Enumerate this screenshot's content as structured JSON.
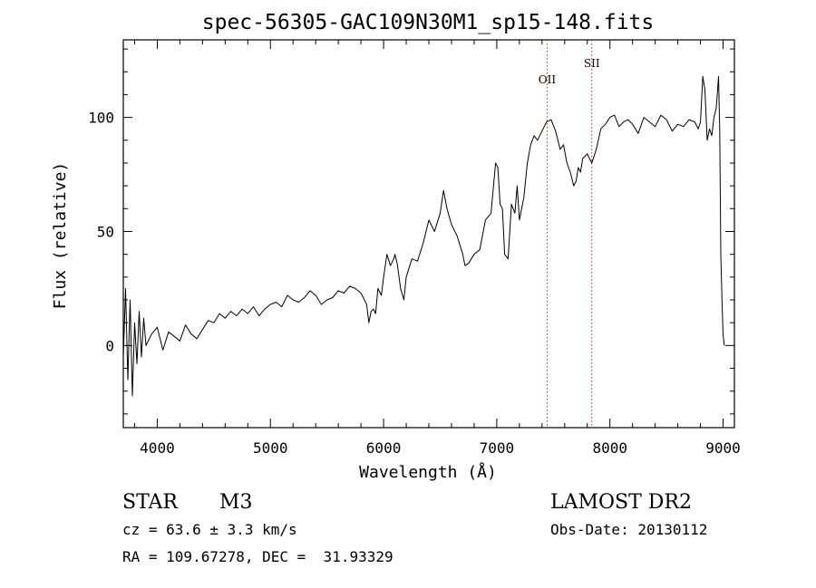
{
  "chart_data": {
    "type": "line",
    "title": "spec-56305-GAC109N30M1_sp15-148.fits",
    "xlabel": "Wavelength (Å)",
    "ylabel": "Flux (relative)",
    "xlim": [
      3700,
      9100
    ],
    "ylim": [
      -36,
      134
    ],
    "x_ticks": [
      4000,
      5000,
      6000,
      7000,
      8000,
      9000
    ],
    "y_ticks": [
      0,
      50,
      100
    ],
    "x_minor_step": 200,
    "y_minor_step": 10,
    "grid": false,
    "line_color": "#000000",
    "marker_color": "#b03030",
    "emission_lines": [
      {
        "label": "OII",
        "wavelength": 7445,
        "label_y": 115
      },
      {
        "label": "SII",
        "wavelength": 7840,
        "label_y": 122
      }
    ],
    "series": [
      {
        "x": [
          3700,
          3720,
          3740,
          3760,
          3780,
          3800,
          3820,
          3840,
          3860,
          3880,
          3900,
          3950,
          4000,
          4050,
          4100,
          4150,
          4200,
          4250,
          4300,
          4350,
          4400,
          4450,
          4500,
          4550,
          4600,
          4650,
          4700,
          4750,
          4800,
          4850,
          4900,
          4950,
          5000,
          5050,
          5100,
          5150,
          5200,
          5250,
          5300,
          5350,
          5400,
          5450,
          5500,
          5550,
          5600,
          5650,
          5700,
          5750,
          5800,
          5850,
          5870,
          5890,
          5910,
          5930,
          5950,
          5980,
          6000,
          6030,
          6060,
          6090,
          6100,
          6120,
          6150,
          6180,
          6200,
          6250,
          6300,
          6350,
          6400,
          6450,
          6500,
          6530,
          6560,
          6600,
          6650,
          6700,
          6720,
          6750,
          6800,
          6850,
          6900,
          6950,
          6990,
          7010,
          7030,
          7050,
          7070,
          7100,
          7130,
          7160,
          7180,
          7200,
          7240,
          7270,
          7300,
          7330,
          7360,
          7400,
          7440,
          7480,
          7520,
          7560,
          7590,
          7620,
          7650,
          7680,
          7700,
          7720,
          7740,
          7760,
          7800,
          7840,
          7880,
          7920,
          7960,
          8000,
          8040,
          8080,
          8120,
          8160,
          8200,
          8250,
          8300,
          8350,
          8400,
          8450,
          8500,
          8550,
          8600,
          8650,
          8700,
          8750,
          8780,
          8800,
          8820,
          8840,
          8860,
          8880,
          8900,
          8920,
          8940,
          8960,
          8970,
          8980,
          8990,
          9000,
          9010
        ],
        "y": [
          -5,
          25,
          -15,
          20,
          -22,
          10,
          -8,
          15,
          -5,
          12,
          0,
          5,
          8,
          -2,
          6,
          4,
          2,
          9,
          5,
          3,
          7,
          11,
          10,
          14,
          12,
          15,
          13,
          16,
          14,
          17,
          13,
          16,
          18,
          19,
          17,
          22,
          20,
          19,
          21,
          24,
          22,
          18,
          20,
          21,
          24,
          23,
          26,
          25,
          23,
          18,
          10,
          15,
          16,
          14,
          25,
          22,
          30,
          40,
          35,
          38,
          40,
          36,
          25,
          20,
          30,
          38,
          37,
          45,
          55,
          50,
          58,
          68,
          60,
          53,
          48,
          40,
          35,
          36,
          40,
          42,
          55,
          58,
          80,
          78,
          62,
          60,
          40,
          38,
          62,
          58,
          70,
          55,
          65,
          80,
          88,
          92,
          90,
          94,
          98,
          99,
          94,
          86,
          88,
          80,
          76,
          70,
          72,
          78,
          76,
          82,
          84,
          80,
          86,
          95,
          97,
          100,
          101,
          96,
          98,
          99,
          97,
          93,
          100,
          98,
          96,
          101,
          99,
          94,
          97,
          96,
          99,
          98,
          95,
          98,
          118,
          112,
          90,
          95,
          92,
          100,
          104,
          118,
          95,
          40,
          20,
          5,
          0
        ]
      }
    ]
  },
  "info": {
    "object_class": "STAR",
    "subclass": "M3",
    "survey": "LAMOST DR2",
    "redshift": "cz = 63.6 ± 3.3 km/s",
    "obs_date": "Obs-Date: 20130112",
    "coords": "RA = 109.67278, DEC =  31.93329"
  }
}
